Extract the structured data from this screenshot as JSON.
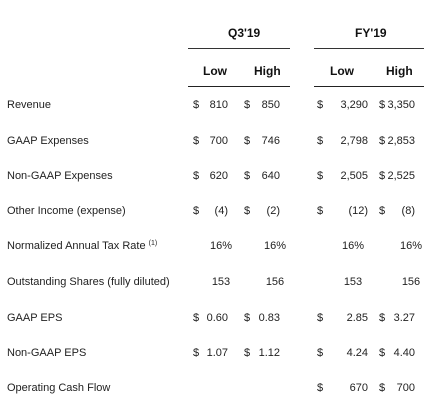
{
  "header": {
    "q3_title": "Q3'19",
    "fy_title": "FY'19",
    "q3_low": "Low",
    "q3_high": "High",
    "fy_low": "Low",
    "fy_high": "High"
  },
  "rows": [
    {
      "label": "Revenue",
      "sup": "",
      "cells": [
        [
          "$",
          "810"
        ],
        [
          "$",
          "850"
        ],
        [
          "$",
          "3,290"
        ],
        [
          "$",
          "3,350"
        ]
      ]
    },
    {
      "label": "GAAP Expenses",
      "sup": "",
      "cells": [
        [
          "$",
          "700"
        ],
        [
          "$",
          "746"
        ],
        [
          "$",
          "2,798"
        ],
        [
          "$",
          "2,853"
        ]
      ]
    },
    {
      "label": "Non-GAAP Expenses",
      "sup": "",
      "cells": [
        [
          "$",
          "620"
        ],
        [
          "$",
          "640"
        ],
        [
          "$",
          "2,505"
        ],
        [
          "$",
          "2,525"
        ]
      ]
    },
    {
      "label": "Other Income (expense)",
      "sup": "",
      "cells": [
        [
          "$",
          "(4)"
        ],
        [
          "$",
          "(2)"
        ],
        [
          "$",
          "(12)"
        ],
        [
          "$",
          "(8)"
        ]
      ]
    },
    {
      "label": "Normalized Annual Tax Rate ",
      "sup": "(1)",
      "cells": [
        [
          "",
          "16%"
        ],
        [
          "",
          "16%"
        ],
        [
          "",
          "16%"
        ],
        [
          "",
          "16%"
        ]
      ]
    },
    {
      "label": "Outstanding Shares (fully diluted)",
      "sup": "",
      "cells": [
        [
          "",
          "153"
        ],
        [
          "",
          "156"
        ],
        [
          "",
          "153"
        ],
        [
          "",
          "156"
        ]
      ]
    },
    {
      "label": "GAAP EPS",
      "sup": "",
      "cells": [
        [
          "$",
          "0.60"
        ],
        [
          "$",
          "0.83"
        ],
        [
          "$",
          "2.85"
        ],
        [
          "$",
          "3.27"
        ]
      ]
    },
    {
      "label": "Non-GAAP EPS",
      "sup": "",
      "cells": [
        [
          "$",
          "1.07"
        ],
        [
          "$",
          "1.12"
        ],
        [
          "$",
          "4.24"
        ],
        [
          "$",
          "4.40"
        ]
      ]
    },
    {
      "label": "Operating Cash Flow",
      "sup": "",
      "cells": [
        [
          "",
          ""
        ],
        [
          "",
          ""
        ],
        [
          "$",
          "670"
        ],
        [
          "$",
          "700"
        ]
      ]
    }
  ]
}
